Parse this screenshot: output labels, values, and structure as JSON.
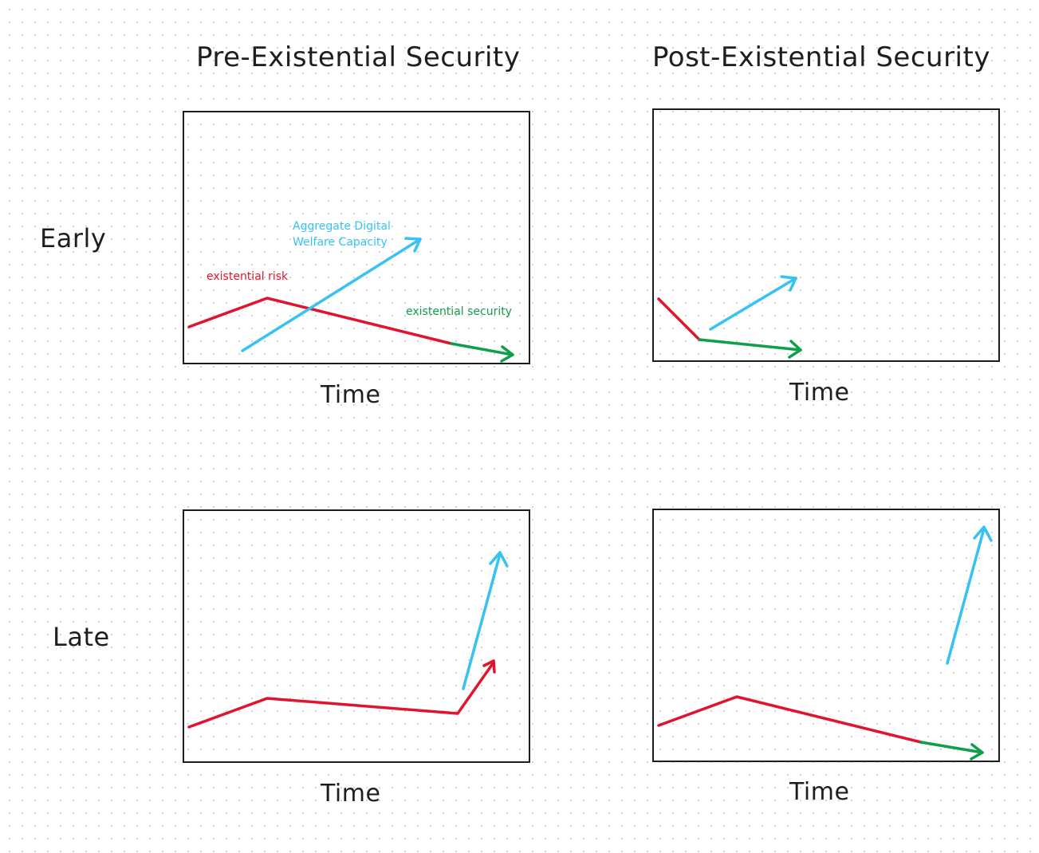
{
  "columns": {
    "pre": "Pre-Existential Security",
    "post": "Post-Existential Security"
  },
  "rows": {
    "early": "Early",
    "late": "Late"
  },
  "axis": {
    "x_label": "Time"
  },
  "annotations": {
    "digital_welfare_line1": "Aggregate Digital",
    "digital_welfare_line2": "Welfare Capacity",
    "existential_risk": "existential risk",
    "existential_security": "existential security"
  },
  "colors": {
    "existential_risk": "#e0152d",
    "digital_welfare": "#36c2f2",
    "existential_security": "#0f9e4a",
    "frame": "#1e1e1e"
  }
}
